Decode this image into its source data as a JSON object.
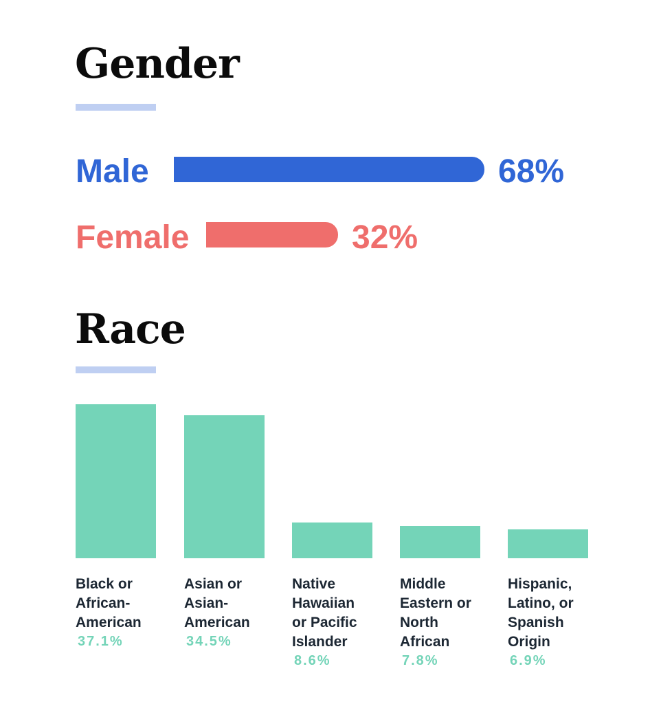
{
  "gender": {
    "title": "Gender",
    "underline_color": "#bfcff2"
  },
  "race": {
    "title": "Race",
    "underline_color": "#bfcff2"
  },
  "chart_data": [
    {
      "type": "bar",
      "orientation": "horizontal",
      "title": "Gender",
      "categories": [
        "Male",
        "Female"
      ],
      "values": [
        68,
        32
      ],
      "value_labels": [
        "68%",
        "32%"
      ],
      "colors": [
        "#3066d6",
        "#ef6e6c"
      ],
      "grid": false
    },
    {
      "type": "bar",
      "orientation": "vertical",
      "title": "Race",
      "categories": [
        [
          "Black or",
          "African-",
          "American"
        ],
        [
          "Asian or",
          "Asian-",
          "American"
        ],
        [
          "Native",
          "Hawaiian",
          "or Pacific",
          "Islander"
        ],
        [
          "Middle",
          "Eastern or",
          "North",
          "African"
        ],
        [
          "Hispanic,",
          "Latino, or",
          "Spanish",
          "Origin"
        ]
      ],
      "values": [
        37.1,
        34.5,
        8.6,
        7.8,
        6.9
      ],
      "value_labels": [
        "37.1%",
        "34.5%",
        "8.6%",
        "7.8%",
        "6.9%"
      ],
      "bar_color": "#74d4b8",
      "label_color": "#1c2733",
      "value_color": "#74d4b8",
      "ylim": [
        0,
        37.1
      ],
      "grid": false
    }
  ]
}
